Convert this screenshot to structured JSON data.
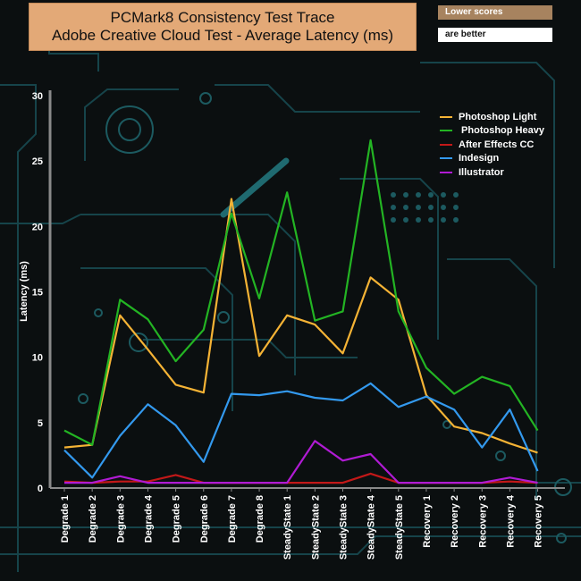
{
  "header": {
    "title_line1": "PCMark8 Consistency Test Trace",
    "title_line2": "Adobe Creative Cloud Test -  Average Latency (ms)",
    "note_line1": "Lower scores",
    "note_line2": "are better"
  },
  "chart_data": {
    "type": "line",
    "title": "PCMark8 Consistency Test Trace Adobe Creative Cloud Test -  Average Latency (ms)",
    "ylabel": "Latency (ms)",
    "xlabel": "",
    "ylim": [
      0,
      30
    ],
    "yticks": [
      0,
      5,
      10,
      15,
      20,
      25,
      30
    ],
    "grid": false,
    "legend_position": "top-right",
    "categories": [
      "Degrade 1",
      "Degrade 2",
      "Degrade 3",
      "Degrade 4",
      "Degrade 5",
      "Degrade 6",
      "Degrade 7",
      "Degrade 8",
      "SteadyState 1",
      "SteadyState 2",
      "SteadyState 3",
      "SteadyState 4",
      "SteadyState 5",
      "Recovery 1",
      "Recovery 2",
      "Recovery 3",
      "Recovery 4",
      "Recovery 5"
    ],
    "series": [
      {
        "name": "Photoshop Light",
        "color": "#f5b335",
        "values": [
          3.1,
          3.3,
          13.2,
          10.6,
          7.9,
          7.3,
          22.1,
          10.1,
          13.2,
          12.5,
          10.3,
          16.1,
          14.4,
          7.1,
          4.7,
          4.2,
          3.4,
          2.7
        ]
      },
      {
        "name": " Photoshop Heavy",
        "color": "#23b423",
        "values": [
          4.4,
          3.3,
          14.4,
          12.9,
          9.7,
          12.1,
          21.0,
          14.5,
          22.6,
          12.8,
          13.5,
          26.6,
          13.5,
          9.2,
          7.2,
          8.5,
          7.8,
          4.4
        ]
      },
      {
        "name": "After Effects CC",
        "color": "#c21818",
        "values": [
          0.5,
          0.4,
          0.5,
          0.5,
          1.0,
          0.4,
          0.4,
          0.4,
          0.4,
          0.4,
          0.4,
          1.1,
          0.4,
          0.4,
          0.4,
          0.4,
          0.5,
          0.4
        ]
      },
      {
        "name": "Indesign",
        "color": "#3399ee",
        "values": [
          2.9,
          0.8,
          4.0,
          6.4,
          4.8,
          2.0,
          7.2,
          7.1,
          7.4,
          6.9,
          6.7,
          8.0,
          6.2,
          7.0,
          6.0,
          3.1,
          6.0,
          1.3
        ]
      },
      {
        "name": "Illustrator",
        "color": "#b01bd4",
        "values": [
          0.4,
          0.4,
          0.9,
          0.4,
          0.4,
          0.4,
          0.4,
          0.4,
          0.4,
          3.6,
          2.1,
          2.6,
          0.4,
          0.4,
          0.4,
          0.4,
          0.8,
          0.4
        ]
      }
    ]
  }
}
